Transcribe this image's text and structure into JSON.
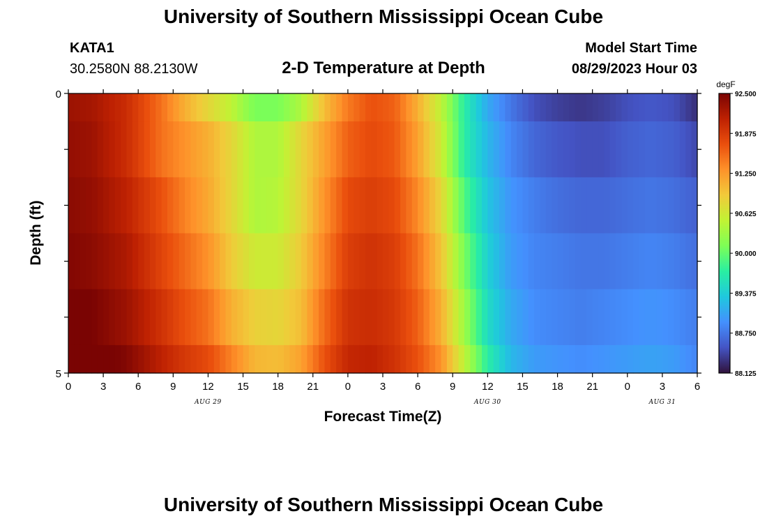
{
  "header": {
    "title": "University of Southern Mississippi Ocean Cube",
    "station": "KATA1",
    "coords": "30.2580N  88.2130W",
    "model_start_label": "Model Start Time",
    "model_start_value": "08/29/2023 Hour 03"
  },
  "footer": {
    "title": "University of Southern Mississippi Ocean Cube"
  },
  "colors": {
    "scale": [
      "#30123b",
      "#4454c4",
      "#4490fe",
      "#1fc8de",
      "#29efa2",
      "#7dff56",
      "#c1f334",
      "#f1ca3a",
      "#fe922a",
      "#ea4f0d",
      "#be2102",
      "#7a0403"
    ]
  },
  "chart_data": {
    "type": "heatmap",
    "title": "2-D Temperature at Depth",
    "xlabel": "Forecast Time(Z)",
    "ylabel": "Depth (ft)",
    "x_hours_since_start_of_aug29": [
      0,
      3,
      6,
      9,
      12,
      15,
      18,
      21,
      24,
      27,
      30,
      33,
      36,
      39,
      42,
      45,
      48,
      51,
      54
    ],
    "x_tick_labels": [
      "0",
      "3",
      "6",
      "9",
      "12",
      "15",
      "18",
      "21",
      "0",
      "3",
      "6",
      "9",
      "12",
      "15",
      "18",
      "21",
      "0",
      "3",
      "6"
    ],
    "x_range": [
      0,
      54
    ],
    "day_labels": [
      {
        "label": "AUG 29",
        "hour": 12
      },
      {
        "label": "AUG 30",
        "hour": 36
      },
      {
        "label": "AUG 31",
        "hour": 51
      }
    ],
    "y_tick_labels": [
      "0",
      "5"
    ],
    "y_range": [
      0,
      5
    ],
    "depth_layers": [
      {
        "top": 0.0,
        "bottom": 0.5
      },
      {
        "top": 0.5,
        "bottom": 1.5
      },
      {
        "top": 1.5,
        "bottom": 2.5
      },
      {
        "top": 2.5,
        "bottom": 3.5
      },
      {
        "top": 3.5,
        "bottom": 4.5
      },
      {
        "top": 4.5,
        "bottom": 5.0
      }
    ],
    "time_keyframes_hours": [
      0,
      2,
      5,
      8,
      10,
      12,
      14,
      16,
      18,
      20,
      22,
      24,
      26,
      28,
      30,
      32,
      34,
      36,
      38,
      40,
      42,
      44,
      46,
      48,
      50,
      52,
      54
    ],
    "temperature_keyframes": [
      [
        92.3,
        92.25,
        92.0,
        91.5,
        91.1,
        90.8,
        90.5,
        90.1,
        90.1,
        90.4,
        91.0,
        91.45,
        91.7,
        91.6,
        91.1,
        90.5,
        89.7,
        89.1,
        88.75,
        88.5,
        88.4,
        88.35,
        88.4,
        88.5,
        88.55,
        88.5,
        88.3
      ],
      [
        92.35,
        92.3,
        92.0,
        91.5,
        91.3,
        91.1,
        90.8,
        90.4,
        90.4,
        90.8,
        91.2,
        91.6,
        91.75,
        91.65,
        91.2,
        90.6,
        89.7,
        89.2,
        88.85,
        88.65,
        88.55,
        88.5,
        88.5,
        88.6,
        88.65,
        88.6,
        88.45
      ],
      [
        92.4,
        92.35,
        92.1,
        91.7,
        91.4,
        91.15,
        90.8,
        90.4,
        90.45,
        90.8,
        91.3,
        91.75,
        91.85,
        91.75,
        91.35,
        90.8,
        89.9,
        89.3,
        88.95,
        88.8,
        88.7,
        88.65,
        88.65,
        88.7,
        88.75,
        88.7,
        88.6
      ],
      [
        92.45,
        92.4,
        92.2,
        91.8,
        91.55,
        91.3,
        90.9,
        90.6,
        90.6,
        90.9,
        91.4,
        91.85,
        91.95,
        91.85,
        91.5,
        90.95,
        90.1,
        89.4,
        89.0,
        88.85,
        88.8,
        88.75,
        88.75,
        88.8,
        88.85,
        88.8,
        88.7
      ],
      [
        92.55,
        92.5,
        92.3,
        91.95,
        91.7,
        91.5,
        91.1,
        90.85,
        90.8,
        91.0,
        91.55,
        91.95,
        92.0,
        91.9,
        91.6,
        91.1,
        90.3,
        89.5,
        89.1,
        88.9,
        88.85,
        88.8,
        88.85,
        88.9,
        88.95,
        88.9,
        88.8
      ],
      [
        92.65,
        92.6,
        92.45,
        92.1,
        91.9,
        91.75,
        91.4,
        91.05,
        91.0,
        91.2,
        91.7,
        92.05,
        92.1,
        91.95,
        91.7,
        91.3,
        90.5,
        89.7,
        89.2,
        89.0,
        88.95,
        88.9,
        88.95,
        89.0,
        89.05,
        89.0,
        88.85
      ]
    ],
    "colorbar": {
      "unit": "degF",
      "min": 88.125,
      "max": 92.5,
      "labels": [
        "92.500",
        "91.875",
        "91.250",
        "90.625",
        "90.000",
        "89.375",
        "88.750",
        "88.125"
      ]
    }
  }
}
